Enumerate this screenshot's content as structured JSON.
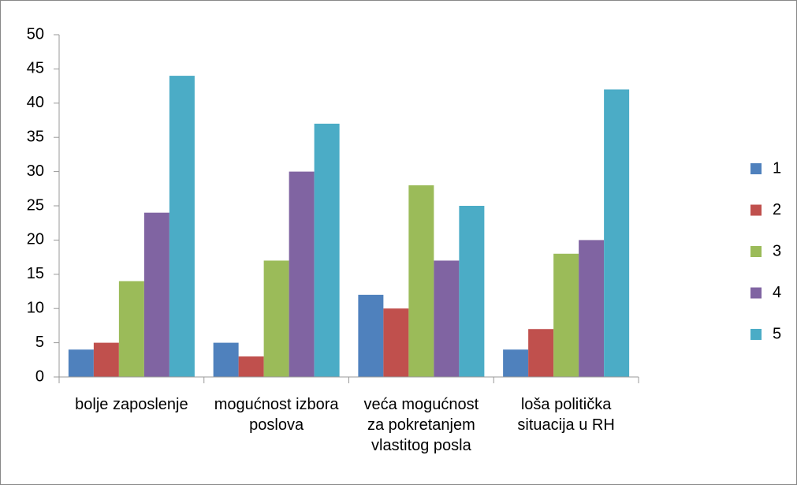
{
  "chart_data": {
    "type": "bar",
    "categories": [
      "bolje zaposlenje",
      "mogućnost izbora poslova",
      "veća mogućnost za pokretanjem vlastitog posla",
      "loša politička situacija u RH"
    ],
    "series": [
      {
        "name": "1",
        "color": "#4f81bd",
        "values": [
          4,
          5,
          12,
          4
        ]
      },
      {
        "name": "2",
        "color": "#c0504d",
        "values": [
          5,
          3,
          10,
          7
        ]
      },
      {
        "name": "3",
        "color": "#9bbb59",
        "values": [
          14,
          17,
          28,
          18
        ]
      },
      {
        "name": "4",
        "color": "#8064a2",
        "values": [
          24,
          30,
          17,
          20
        ]
      },
      {
        "name": "5",
        "color": "#4bacc6",
        "values": [
          44,
          37,
          25,
          42
        ]
      }
    ],
    "ylim": [
      0,
      50
    ],
    "yticks": [
      0,
      5,
      10,
      15,
      20,
      25,
      30,
      35,
      40,
      45,
      50
    ],
    "grid": false,
    "legend": "right"
  }
}
